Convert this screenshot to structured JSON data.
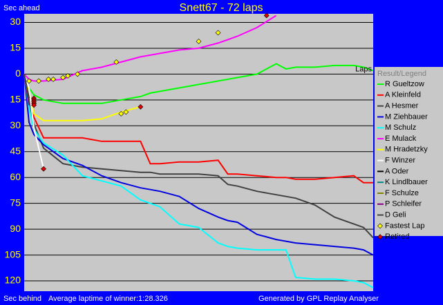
{
  "chart_data": {
    "type": "line",
    "title": "Snett67 - 72 laps",
    "y_label_top": "Sec ahead",
    "y_label_bottom": "Sec behind",
    "x_label": "Laps",
    "footnote": "Average laptime of winner:1:28.326",
    "credit": "Generated by GPL Replay Analyser",
    "legend_title": "Result/Legend",
    "grid": true,
    "xlim": [
      0,
      72
    ],
    "ylim": [
      -126,
      35
    ],
    "yticks": [
      30,
      15,
      0,
      {
        "value": -15,
        "label": "15"
      },
      {
        "value": -30,
        "label": "30"
      },
      {
        "value": -45,
        "label": "45"
      },
      {
        "value": -60,
        "label": "60"
      },
      {
        "value": -75,
        "label": "75"
      },
      {
        "value": -90,
        "label": "90"
      },
      {
        "value": -105,
        "label": "105"
      },
      {
        "value": -120,
        "label": "120"
      }
    ],
    "x": [
      0,
      1,
      2,
      4,
      8,
      12,
      16,
      20,
      24,
      26,
      28,
      32,
      36,
      40,
      42,
      44,
      48,
      52,
      54,
      56,
      60,
      64,
      68,
      70,
      72
    ],
    "series": [
      {
        "name": "R Gueltzow",
        "color": "#00ff00",
        "values": [
          0,
          -8,
          -12,
          -15,
          -17,
          -17,
          -17,
          -15,
          -13,
          -11,
          -10,
          -8,
          -6,
          -4,
          -3,
          -2,
          0,
          6,
          3,
          4,
          4,
          5,
          5,
          4,
          2
        ]
      },
      {
        "name": "A Kleinfeld",
        "color": "#ff0000",
        "values": [
          0,
          -10,
          -25,
          -37,
          -37,
          -37,
          -39,
          -39,
          -39,
          -52,
          -52,
          -51,
          -51,
          -50,
          -58,
          -58,
          -59,
          -60,
          -60,
          -61,
          -61,
          -60,
          -59,
          -63,
          -63
        ]
      },
      {
        "name": "A Hesmer",
        "color": "#404040",
        "values": [
          0,
          -15,
          -29,
          -43,
          -52,
          -54,
          -55,
          -56,
          -57,
          -57,
          -58,
          -58,
          -58,
          -59,
          -64,
          -65,
          -68,
          -70,
          -71,
          -72,
          -76,
          -83,
          -87,
          -89,
          -95
        ]
      },
      {
        "name": "M Ziehbauer",
        "color": "#0000e0",
        "values": [
          0,
          -28,
          -35,
          -41,
          -49,
          -53,
          -59,
          -63,
          -66,
          -67,
          -68,
          -71,
          -78,
          -83,
          -85,
          -86,
          -93,
          -96,
          -97,
          -98,
          -99,
          -100,
          -101,
          -102,
          -105
        ]
      },
      {
        "name": "M Schulz",
        "color": "#00ffff",
        "values": [
          0,
          -20,
          -32,
          -40,
          -47,
          -59,
          -62,
          -65,
          -73,
          -75,
          -77,
          -87,
          -89,
          -98,
          -100,
          -101,
          -102,
          -102,
          -102,
          -118,
          -119,
          -119,
          -120,
          -121,
          -124
        ]
      },
      {
        "name": "E Mulack",
        "color": "#ff00ff",
        "values": [
          0,
          -3,
          -4,
          -4,
          -3,
          2,
          4,
          7,
          10,
          11,
          12,
          14,
          15,
          18,
          20,
          22,
          27,
          34,
          null,
          null,
          null,
          null,
          null,
          null,
          null
        ]
      },
      {
        "name": "M Hradetzky",
        "color": "#ffff00",
        "values": [
          0,
          -10,
          -23,
          -27,
          -27,
          -27,
          -26,
          -22,
          -19,
          null,
          null,
          null,
          null,
          null,
          null,
          null,
          null,
          null,
          null,
          null,
          null,
          null,
          null,
          null,
          null
        ]
      },
      {
        "name": "F Winzer",
        "color": "#ffffff",
        "values": [
          0,
          -8,
          -31,
          -55,
          null,
          null,
          null,
          null,
          null,
          null,
          null,
          null,
          null,
          null,
          null,
          null,
          null,
          null,
          null,
          null,
          null,
          null,
          null,
          null,
          null
        ]
      },
      {
        "name": "A Oder",
        "color": "#000000",
        "values": [
          0,
          -14,
          null,
          null,
          null,
          null,
          null,
          null,
          null,
          null,
          null,
          null,
          null,
          null,
          null,
          null,
          null,
          null,
          null,
          null,
          null,
          null,
          null,
          null,
          null
        ]
      },
      {
        "name": "K Lindlbauer",
        "color": "#008080",
        "values": [
          0,
          -16,
          null,
          null,
          null,
          null,
          null,
          null,
          null,
          null,
          null,
          null,
          null,
          null,
          null,
          null,
          null,
          null,
          null,
          null,
          null,
          null,
          null,
          null,
          null
        ]
      },
      {
        "name": "F Schulze",
        "color": "#808000",
        "values": [
          0,
          -17,
          null,
          null,
          null,
          null,
          null,
          null,
          null,
          null,
          null,
          null,
          null,
          null,
          null,
          null,
          null,
          null,
          null,
          null,
          null,
          null,
          null,
          null,
          null
        ]
      },
      {
        "name": "P Schleifer",
        "color": "#800080",
        "values": [
          0,
          -18,
          null,
          null,
          null,
          null,
          null,
          null,
          null,
          null,
          null,
          null,
          null,
          null,
          null,
          null,
          null,
          null,
          null,
          null,
          null,
          null,
          null,
          null,
          null
        ]
      },
      {
        "name": "D Geli",
        "color": "#404040",
        "values": [
          0,
          -15,
          null,
          null,
          null,
          null,
          null,
          null,
          null,
          null,
          null,
          null,
          null,
          null,
          null,
          null,
          null,
          null,
          null,
          null,
          null,
          null,
          null,
          null,
          null
        ]
      }
    ],
    "markers": [
      {
        "name": "Fastest Lap",
        "color": "#ffff00",
        "x": [
          1,
          3,
          5,
          6,
          8,
          9,
          11,
          19,
          20,
          21,
          36,
          40
        ],
        "values": [
          -4,
          -4,
          -3,
          -3,
          -2,
          -1,
          0,
          7,
          -23,
          -22,
          19,
          24
        ]
      },
      {
        "name": "Retired",
        "color": "#e00000",
        "x": [
          2,
          2,
          2,
          2,
          2,
          4,
          24,
          50
        ],
        "values": [
          -14,
          -15,
          -16,
          -17,
          -18,
          -55,
          -19,
          34
        ]
      }
    ]
  }
}
